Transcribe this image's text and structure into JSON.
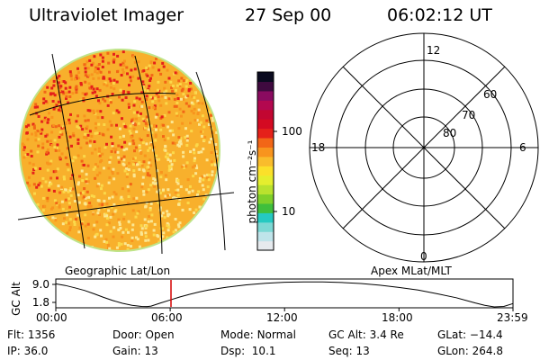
{
  "header": {
    "instrument": "Ultraviolet Imager",
    "date": "27 Sep 00",
    "time": "06:02:12 UT"
  },
  "left_panel_label": "Geographic Lat/Lon",
  "right_panel_label": "Apex MLat/MLT",
  "colorbar": {
    "label": "photon cm⁻²s⁻¹",
    "ticks": [
      "100",
      "10"
    ],
    "colors": [
      "#e6eaee",
      "#bfe4ea",
      "#7cd8d4",
      "#25c9c1",
      "#3fbf3c",
      "#7fd02a",
      "#b9e22e",
      "#e5ee2e",
      "#fbe02a",
      "#f9bc2c",
      "#f8941e",
      "#f26617",
      "#e5211a",
      "#d40a22",
      "#c20631",
      "#b3084f",
      "#8a0b60",
      "#3f0a3f",
      "#0a0a1f"
    ]
  },
  "polar": {
    "mlt_labels": [
      "12",
      "18",
      "6",
      "0"
    ],
    "lat_labels": [
      "60",
      "70",
      "80"
    ]
  },
  "chart_data": {
    "type": "line",
    "title": "",
    "ylabel": "GC Alt",
    "y_ticks": [
      "9.0",
      "1.8"
    ],
    "x_ticks": [
      "00:00",
      "06:00",
      "12:00",
      "18:00",
      "23:59"
    ],
    "x_hours": [
      0,
      0.5,
      1,
      1.5,
      2,
      2.5,
      3,
      3.5,
      4,
      4.5,
      4.8,
      5,
      5.5,
      6,
      6.5,
      7,
      7.5,
      8,
      9,
      10,
      11,
      12,
      13,
      14,
      15,
      16,
      17,
      18,
      19,
      20,
      21,
      22,
      22.5,
      23,
      23.5,
      23.98
    ],
    "y_values": [
      8.4,
      7.9,
      7.2,
      6.4,
      5.4,
      4.3,
      3.3,
      2.5,
      1.9,
      1.55,
      1.5,
      1.65,
      2.6,
      3.5,
      4.4,
      5.2,
      5.9,
      6.5,
      7.4,
      8.1,
      8.6,
      8.9,
      9.0,
      9.0,
      8.8,
      8.5,
      8.0,
      7.3,
      6.5,
      5.4,
      4.2,
      2.6,
      1.9,
      1.4,
      1.55,
      2.4
    ],
    "xlim": [
      0,
      23.98
    ],
    "ylim": [
      1.4,
      9.6
    ],
    "current_time_marker": 6.04
  },
  "status": {
    "flt_label": "Flt:",
    "flt_value": "1356",
    "ip_label": "IP:",
    "ip_value": "36.0",
    "door_label": "Door:",
    "door_value": "Open",
    "gain_label": "Gain:",
    "gain_value": "13",
    "mode_label": "Mode:",
    "mode_value": "Normal",
    "dsp_label": "Dsp:",
    "dsp_value": "10.1",
    "gcalt_label": "GC Alt:",
    "gcalt_value": "3.4 Re",
    "seq_label": "Seq:",
    "seq_value": "13",
    "glat_label": "GLat:",
    "glat_value": "−14.4",
    "glon_label": "GLon:",
    "glon_value": "264.8"
  }
}
